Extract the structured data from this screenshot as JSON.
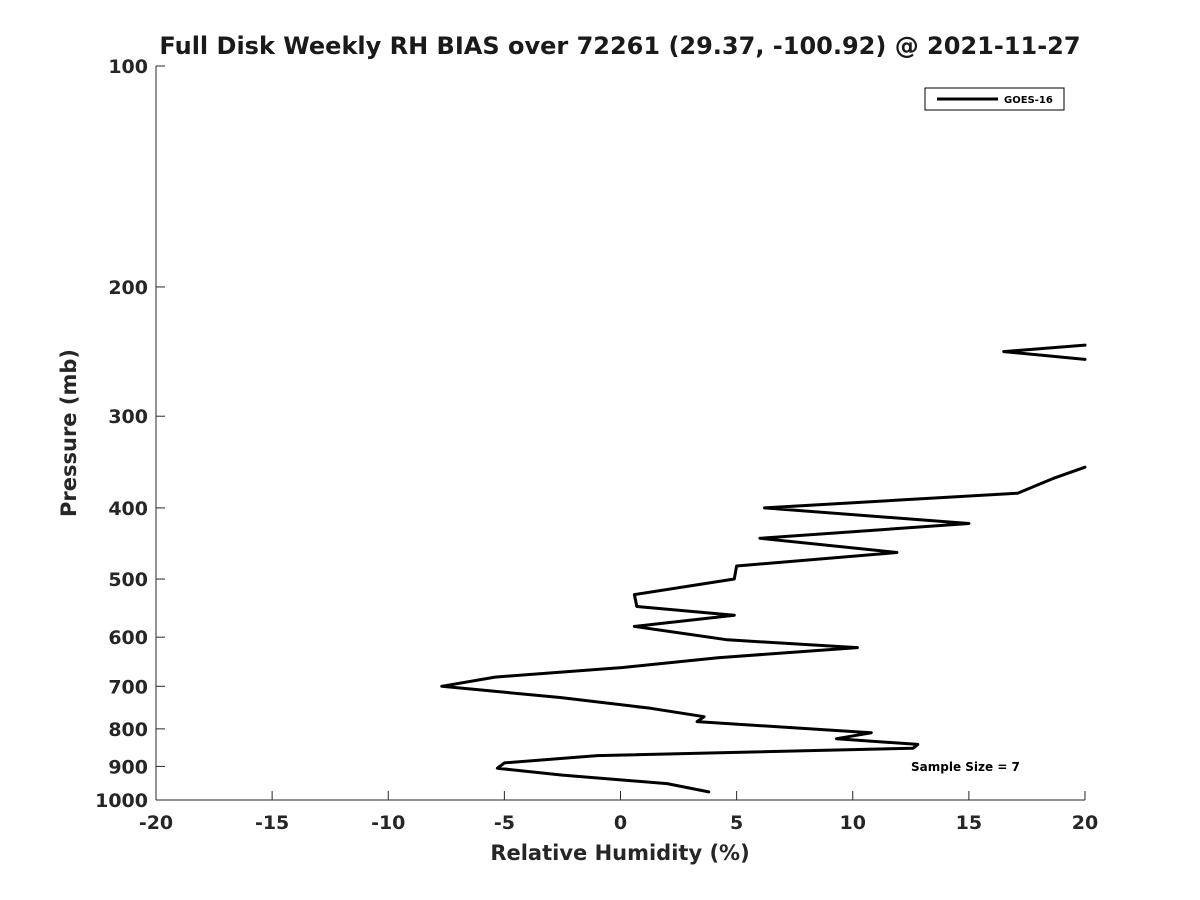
{
  "chart_data": {
    "type": "line",
    "title": "Full Disk Weekly RH BIAS over 72261 (29.37, -100.92) @ 2021-11-27",
    "xlabel": "Relative Humidity (%)",
    "ylabel": "Pressure (mb)",
    "xlim": [
      -20,
      20
    ],
    "ylim": [
      100,
      1000
    ],
    "y_scale": "log",
    "y_reversed": true,
    "grid": false,
    "x_ticks": [
      -20,
      -15,
      -10,
      -5,
      0,
      5,
      10,
      15,
      20
    ],
    "x_tick_labels": [
      "-20",
      "-15",
      "-10",
      "-5",
      "0",
      "5",
      "10",
      "15",
      "20"
    ],
    "y_ticks": [
      100,
      200,
      300,
      400,
      500,
      600,
      700,
      800,
      900,
      1000
    ],
    "y_tick_labels": [
      "100",
      "200",
      "300",
      "400",
      "500",
      "600",
      "700",
      "800",
      "900",
      "1000"
    ],
    "legend_position": "top-right",
    "annotation": "Sample Size = 7",
    "series": [
      {
        "name": "GOES-16",
        "color": "#000000",
        "segments": [
          [
            {
              "x": 20.0,
              "p": 240
            },
            {
              "x": 16.5,
              "p": 245
            },
            {
              "x": 20.0,
              "p": 251
            }
          ],
          [
            {
              "x": 20.0,
              "p": 352
            },
            {
              "x": 18.6,
              "p": 365
            },
            {
              "x": 17.1,
              "p": 382
            },
            {
              "x": 6.2,
              "p": 400
            },
            {
              "x": 15.0,
              "p": 420
            },
            {
              "x": 6.0,
              "p": 440
            },
            {
              "x": 11.9,
              "p": 460
            },
            {
              "x": 5.0,
              "p": 480
            },
            {
              "x": 4.9,
              "p": 500
            },
            {
              "x": 0.6,
              "p": 525
            },
            {
              "x": 0.7,
              "p": 545
            },
            {
              "x": 4.9,
              "p": 560
            },
            {
              "x": 0.6,
              "p": 580
            },
            {
              "x": 4.6,
              "p": 605
            },
            {
              "x": 10.2,
              "p": 620
            },
            {
              "x": 4.2,
              "p": 640
            },
            {
              "x": 0.1,
              "p": 660
            },
            {
              "x": -5.4,
              "p": 680
            },
            {
              "x": -7.7,
              "p": 700
            },
            {
              "x": -2.6,
              "p": 725
            },
            {
              "x": 1.3,
              "p": 750
            },
            {
              "x": 3.6,
              "p": 770
            },
            {
              "x": 3.3,
              "p": 782
            },
            {
              "x": 10.8,
              "p": 810
            },
            {
              "x": 9.3,
              "p": 825
            },
            {
              "x": 12.8,
              "p": 840
            },
            {
              "x": 12.6,
              "p": 850
            },
            {
              "x": -1.0,
              "p": 870
            },
            {
              "x": -5.0,
              "p": 890
            },
            {
              "x": -5.3,
              "p": 905
            },
            {
              "x": -2.5,
              "p": 925
            },
            {
              "x": 2.0,
              "p": 950
            },
            {
              "x": 3.8,
              "p": 975
            }
          ]
        ]
      }
    ]
  }
}
